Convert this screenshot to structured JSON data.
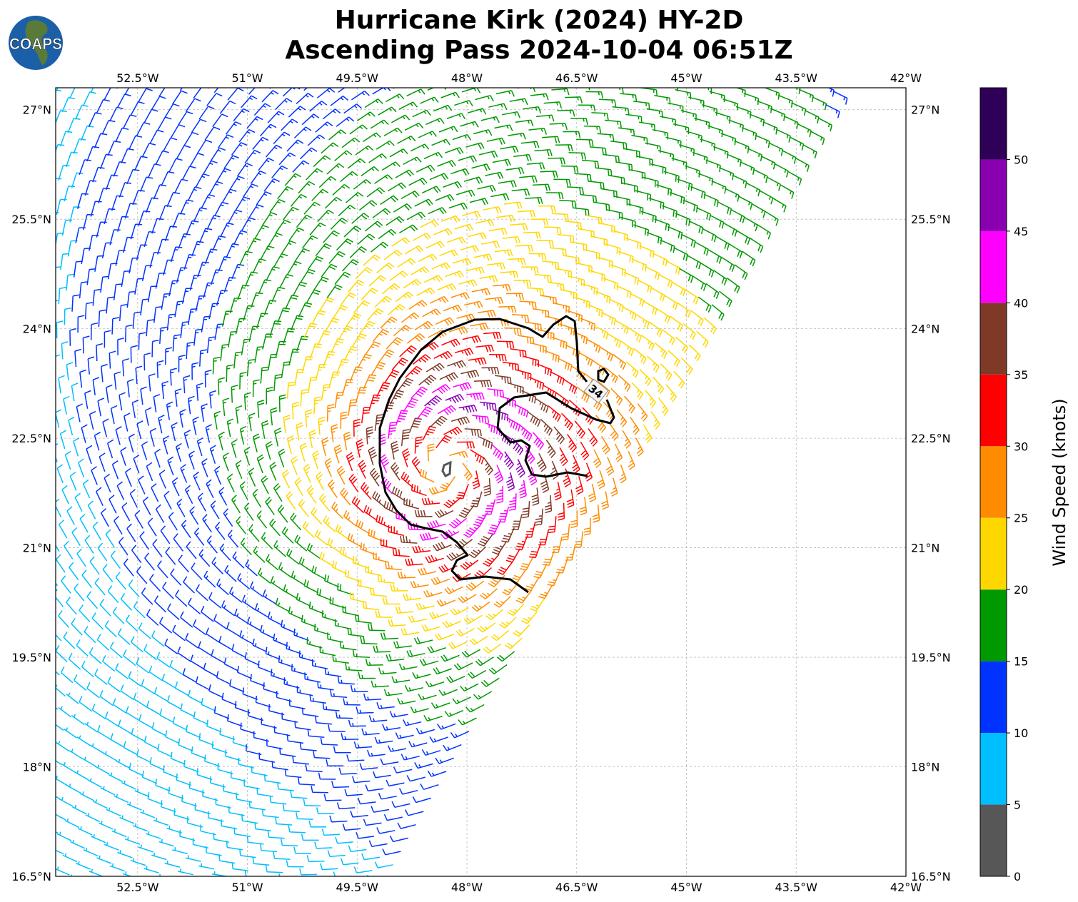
{
  "title": {
    "line1": "Hurricane Kirk (2024) HY-2D",
    "line2": "Ascending Pass 2024-10-04 06:51Z"
  },
  "logo": {
    "text": "COAPS",
    "icon": "globe-logo"
  },
  "axes": {
    "lon_labels": [
      "52.5°W",
      "51°W",
      "49.5°W",
      "48°W",
      "46.5°W",
      "45°W",
      "43.5°W",
      "42°W"
    ],
    "lon_values": [
      -52.5,
      -51,
      -49.5,
      -48,
      -46.5,
      -45,
      -43.5,
      -42
    ],
    "lat_labels": [
      "27°N",
      "25.5°N",
      "24°N",
      "22.5°N",
      "21°N",
      "19.5°N",
      "18°N",
      "16.5°N"
    ],
    "lat_values": [
      27,
      25.5,
      24,
      22.5,
      21,
      19.5,
      18,
      16.5
    ],
    "lon_range": [
      -53.62,
      -42
    ],
    "lat_range": [
      16.5,
      27.3
    ]
  },
  "contour": {
    "label": "34",
    "units": "knots"
  },
  "storm": {
    "center_lon": -48.25,
    "center_lat": 22.1,
    "max_wind_kt": 50
  },
  "colorbar": {
    "label": "Wind Speed (knots)",
    "ticks": [
      "0",
      "5",
      "10",
      "15",
      "20",
      "25",
      "30",
      "35",
      "40",
      "45",
      "50"
    ],
    "bounds": [
      0,
      5,
      10,
      15,
      20,
      25,
      30,
      35,
      40,
      45,
      50,
      55
    ],
    "colors": [
      "#575757",
      "#00bfff",
      "#0033ff",
      "#009900",
      "#ffd700",
      "#ff8c00",
      "#ff0000",
      "#7f3a27",
      "#ff00ff",
      "#8800b0",
      "#2e0057"
    ]
  }
}
